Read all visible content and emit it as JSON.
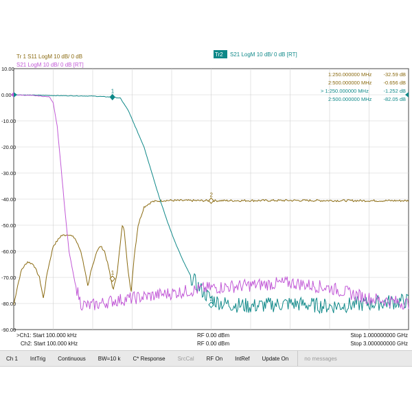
{
  "colors": {
    "tr1": "#8a6a10",
    "tr2": "#0e8888",
    "tr3": "#c158d6",
    "grid": "#d0d0d0",
    "axis": "#444444"
  },
  "trace_headers": [
    {
      "label": "Tr 1  S11 LogM 10 dB/ 0 dB",
      "color": "#8a6a10"
    },
    {
      "label": "Tr 3  S21 LogM 10 dB/ 0 dB [RT]",
      "color": "#c158d6"
    },
    {
      "badge": "Tr2",
      "label": "S21 LogM 10 dB/ 0 dB [RT]",
      "color": "#0e8888"
    }
  ],
  "markers": [
    {
      "name": "1:250.000000 MHz",
      "value": "-32.59 dB",
      "color": "#8a6a10"
    },
    {
      "name": "2:500.000000 MHz",
      "value": "-0.656 dB",
      "color": "#8a6a10"
    },
    {
      "name": "> 1:250.000000 MHz",
      "value": "-1.252 dB",
      "color": "#0e8888"
    },
    {
      "name": "2:500.000000 MHz",
      "value": "-82.05 dB",
      "color": "#0e8888"
    }
  ],
  "footer": {
    "ch1_start": ">Ch1: Start 100.000 kHz",
    "ch2_start": "Ch2: Start 100.000 kHz",
    "rf1": "RF 0.00 dBm",
    "rf2": "RF 0.00 dBm",
    "ch1_stop": "Stop 1.000000000 GHz",
    "ch2_stop": "Stop 3.000000000 GHz"
  },
  "toolbar": [
    {
      "label": "Ch 1",
      "state": "on"
    },
    {
      "label": "IntTrig",
      "state": "on"
    },
    {
      "label": "Continuous",
      "state": "on"
    },
    {
      "label": "BW=10 k",
      "state": "on"
    },
    {
      "label": "C* Response",
      "state": "on"
    },
    {
      "label": "SrcCal",
      "state": "off"
    },
    {
      "label": "RF On",
      "state": "on"
    },
    {
      "label": "IntRef",
      "state": "on"
    },
    {
      "label": "Update On",
      "state": "on"
    },
    {
      "label": "no messages",
      "state": "status"
    }
  ],
  "chart_data": {
    "type": "line",
    "x_units": "fraction of sweep span",
    "xlim": [
      0,
      1
    ],
    "ylim": [
      -90,
      10
    ],
    "yticks": [
      "10.00",
      "0.00",
      "-10.00",
      "-20.00",
      "-30.00",
      "-40.00",
      "-50.00",
      "-60.00",
      "-70.00",
      "-80.00",
      "-90.00"
    ],
    "grid": true,
    "series": [
      {
        "name": "Tr 1 S11",
        "color": "#8a6a10",
        "noise": 0.4,
        "points": [
          [
            0,
            -80.5
          ],
          [
            0.01,
            -73
          ],
          [
            0.02,
            -67
          ],
          [
            0.035,
            -64
          ],
          [
            0.05,
            -65
          ],
          [
            0.065,
            -70
          ],
          [
            0.075,
            -78
          ],
          [
            0.085,
            -68
          ],
          [
            0.1,
            -58
          ],
          [
            0.12,
            -54
          ],
          [
            0.14,
            -53.5
          ],
          [
            0.155,
            -55
          ],
          [
            0.17,
            -60
          ],
          [
            0.18,
            -67
          ],
          [
            0.188,
            -74
          ],
          [
            0.195,
            -68
          ],
          [
            0.21,
            -60
          ],
          [
            0.22,
            -58
          ],
          [
            0.23,
            -60
          ],
          [
            0.24,
            -66
          ],
          [
            0.252,
            -75
          ],
          [
            0.262,
            -68
          ],
          [
            0.27,
            -57
          ],
          [
            0.275,
            -50
          ],
          [
            0.28,
            -52
          ],
          [
            0.285,
            -60
          ],
          [
            0.29,
            -68
          ],
          [
            0.297,
            -76
          ],
          [
            0.305,
            -62
          ],
          [
            0.315,
            -50
          ],
          [
            0.33,
            -43
          ],
          [
            0.35,
            -41
          ],
          [
            0.38,
            -40.5
          ],
          [
            0.5,
            -40.6
          ],
          [
            0.7,
            -40.5
          ],
          [
            0.9,
            -40.6
          ],
          [
            1,
            -40.6
          ]
        ]
      },
      {
        "name": "S21",
        "color": "#0e8888",
        "noise": 3,
        "noise_from": 0.45,
        "points": [
          [
            0,
            0
          ],
          [
            0.1,
            -0.3
          ],
          [
            0.2,
            -0.5
          ],
          [
            0.25,
            -0.9
          ],
          [
            0.27,
            -1.3
          ],
          [
            0.29,
            -6
          ],
          [
            0.31,
            -13
          ],
          [
            0.33,
            -20
          ],
          [
            0.35,
            -30
          ],
          [
            0.37,
            -40
          ],
          [
            0.39,
            -49
          ],
          [
            0.41,
            -57
          ],
          [
            0.43,
            -64
          ],
          [
            0.45,
            -70
          ],
          [
            0.47,
            -74
          ],
          [
            0.49,
            -77
          ],
          [
            0.51,
            -79
          ],
          [
            0.53,
            -80
          ],
          [
            0.6,
            -81
          ],
          [
            0.7,
            -80
          ],
          [
            0.8,
            -81
          ],
          [
            0.9,
            -80
          ],
          [
            1,
            -79
          ]
        ]
      },
      {
        "name": "Tr 3 S21",
        "color": "#c158d6",
        "noise": 2.5,
        "noise_from": 0.16,
        "points": [
          [
            0,
            0
          ],
          [
            0.05,
            -0.3
          ],
          [
            0.09,
            -0.8
          ],
          [
            0.1,
            -3
          ],
          [
            0.11,
            -12
          ],
          [
            0.12,
            -28
          ],
          [
            0.13,
            -45
          ],
          [
            0.14,
            -60
          ],
          [
            0.155,
            -72
          ],
          [
            0.17,
            -80
          ],
          [
            0.19,
            -81
          ],
          [
            0.25,
            -79
          ],
          [
            0.3,
            -78
          ],
          [
            0.35,
            -77
          ],
          [
            0.4,
            -76
          ],
          [
            0.5,
            -74
          ],
          [
            0.6,
            -73
          ],
          [
            0.7,
            -72
          ],
          [
            0.8,
            -74
          ],
          [
            0.85,
            -76
          ],
          [
            0.9,
            -78
          ],
          [
            0.95,
            -79
          ],
          [
            1,
            -80
          ]
        ]
      }
    ],
    "marker_points": [
      {
        "label": "1",
        "x": 0.25,
        "y": -0.9,
        "color": "#0e8888",
        "filled": true
      },
      {
        "label": "2",
        "x": 0.5,
        "y": -40.6,
        "color": "#8a6a10",
        "filled": false
      },
      {
        "label": "1",
        "x": 0.25,
        "y": -70.5,
        "color": "#8a6a10",
        "filled": false
      },
      {
        "label": "2",
        "x": 0.5,
        "y": -80.5,
        "color": "#0e8888",
        "filled": false
      }
    ]
  }
}
